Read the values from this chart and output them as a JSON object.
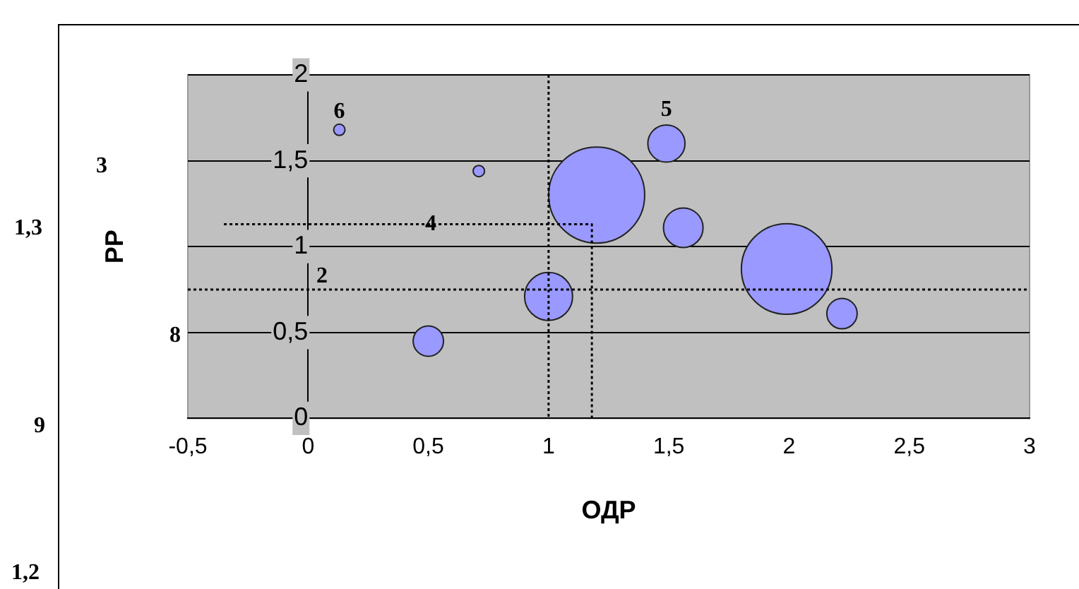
{
  "chart_data": {
    "type": "bubble",
    "xlabel": "ОДР",
    "ylabel": "РР",
    "xlim": [
      -0.5,
      3
    ],
    "xticks": [
      {
        "value": -0.5,
        "label": "-0,5"
      },
      0,
      {
        "value": 0.5,
        "label": "0,5"
      },
      1,
      {
        "value": 1.5,
        "label": "1,5"
      },
      2,
      {
        "value": 2.5,
        "label": "2,5"
      },
      3
    ],
    "ylim": [
      0,
      2
    ],
    "yticks": [
      0,
      {
        "value": 0.5,
        "label": "0,5"
      },
      1,
      {
        "value": 1.5,
        "label": "1,5"
      },
      2
    ],
    "grid": "y",
    "legend": false,
    "series": [
      {
        "color": "#9999ff",
        "x": [
          0.13,
          0.71,
          0.5,
          1.0,
          1.2,
          1.49,
          1.56,
          1.99,
          2.22
        ],
        "values": [
          1.68,
          1.44,
          0.45,
          0.71,
          1.3,
          1.6,
          1.11,
          0.87,
          0.61
        ],
        "sizes": [
          0.014,
          0.014,
          0.1,
          0.25,
          1,
          0.15,
          0.17,
          0.89,
          0.1
        ]
      },
      {
        "type": "line",
        "color": "#000000",
        "line_style": "dotted",
        "marker": "none",
        "x": [
          -0.35,
          1.18,
          1.18
        ],
        "values": [
          1.13,
          1.13,
          0
        ]
      }
    ],
    "ref_lines": [
      {
        "axis": "x",
        "value": 1,
        "color": "#000000",
        "line_style": "dotted"
      },
      {
        "axis": "y",
        "value": 0.75,
        "color": "#000000",
        "line_style": "dotted"
      }
    ],
    "annotations": [
      {
        "text": "6",
        "x": 0.13,
        "y": 1.68
      },
      {
        "text": "5",
        "x": 1.49,
        "y": 1.6
      },
      {
        "text": "4",
        "x": 0.51,
        "y": 1.13
      },
      "2",
      "3",
      "1,3",
      "8",
      "9",
      "1,2"
    ]
  }
}
